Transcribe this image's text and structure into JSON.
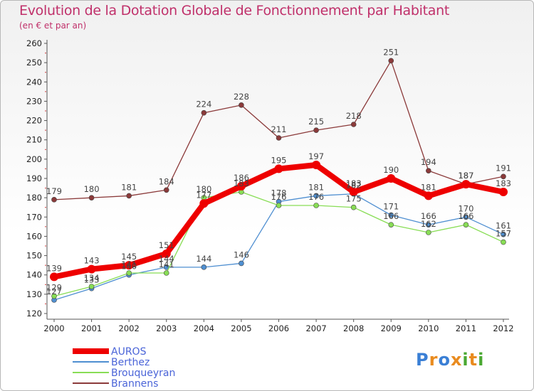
{
  "chart_data": {
    "type": "line",
    "title": "Evolution de la Dotation Globale de Fonctionnement par Habitant",
    "subtitle": "(en € et par an)",
    "categories": [
      "2000",
      "2001",
      "2002",
      "2003",
      "2004",
      "2005",
      "2006",
      "2007",
      "2008",
      "2009",
      "2010",
      "2011",
      "2012"
    ],
    "ylim": [
      120,
      260
    ],
    "yticks": [
      120,
      130,
      140,
      150,
      160,
      170,
      180,
      190,
      200,
      210,
      220,
      230,
      240,
      250,
      260
    ],
    "grid": false,
    "legend_position": "bottom-left",
    "series": [
      {
        "name": "AUROS",
        "color": "#ee0000",
        "values": [
          139,
          143,
          145,
          151,
          177,
          186,
          195,
          197,
          183,
          190,
          181,
          187,
          183
        ]
      },
      {
        "name": "Berthez",
        "color": "#4f8fd1",
        "values": [
          127,
          133,
          140,
          144,
          144,
          146,
          178,
          181,
          182,
          171,
          166,
          170,
          161
        ]
      },
      {
        "name": "Brouqueyran",
        "color": "#88dd55",
        "values": [
          129,
          134,
          141,
          141,
          180,
          183,
          176,
          176,
          175,
          166,
          162,
          166,
          157
        ]
      },
      {
        "name": "Brannens",
        "color": "#8b3a3a",
        "values": [
          179,
          180,
          181,
          184,
          224,
          228,
          211,
          215,
          218,
          251,
          194,
          187,
          191
        ]
      }
    ]
  },
  "logo": {
    "letters": [
      "P",
      "r",
      "o",
      "x",
      "i",
      "t",
      "i"
    ],
    "colors": [
      "#3a7fd5",
      "#e98b1f",
      "#3a7fd5",
      "#e98b1f",
      "#4aa832",
      "#e98b1f",
      "#4aa832"
    ]
  }
}
